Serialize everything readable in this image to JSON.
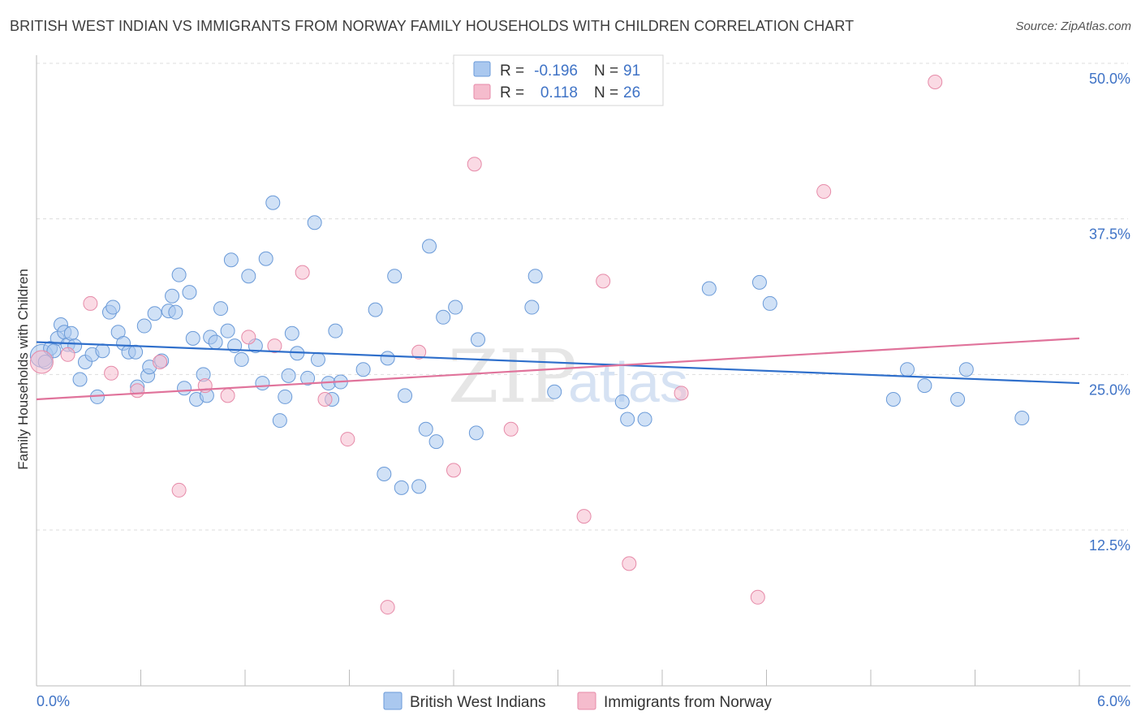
{
  "title": "BRITISH WEST INDIAN VS IMMIGRANTS FROM NORWAY FAMILY HOUSEHOLDS WITH CHILDREN CORRELATION CHART",
  "source": "Source: ZipAtlas.com",
  "watermark": {
    "zip": "ZIP",
    "atlas": "atlas"
  },
  "colors": {
    "blue_fill": "#aac8ef",
    "blue_stroke": "#6a9ad8",
    "blue_line": "#2f6fcb",
    "pink_fill": "#f5bccd",
    "pink_stroke": "#e68aa8",
    "pink_line": "#e0739b",
    "tick_label": "#3f73c6",
    "grid": "#dddddd"
  },
  "legend": {
    "rows": [
      {
        "r_label": "R =",
        "r_value": "-0.196",
        "n_label": "N =",
        "n_value": "91",
        "color": "#aac8ef"
      },
      {
        "r_label": "R =",
        "r_value": "0.118",
        "n_label": "N =",
        "n_value": "26",
        "color": "#f5bccd"
      }
    ]
  },
  "chart_data": {
    "type": "scatter",
    "title": "BRITISH WEST INDIAN VS IMMIGRANTS FROM NORWAY FAMILY HOUSEHOLDS WITH CHILDREN CORRELATION CHART",
    "xlabel": "",
    "ylabel": "Family Households with Children",
    "xlim": [
      0,
      6
    ],
    "ylim": [
      0,
      52
    ],
    "x_tick_labels": [
      {
        "value": 0,
        "label": "0.0%"
      },
      {
        "value": 6,
        "label": "6.0%"
      }
    ],
    "y_ticks": [
      {
        "value": 12.5,
        "label": "12.5%"
      },
      {
        "value": 25,
        "label": "25.0%"
      },
      {
        "value": 37.5,
        "label": "37.5%"
      },
      {
        "value": 50,
        "label": "50.0%"
      }
    ],
    "grid": true,
    "legend_position": "top-center",
    "series": [
      {
        "name": "British West Indians",
        "color": "#aac8ef",
        "trend": {
          "x": [
            0,
            6
          ],
          "y": [
            27.6,
            24.3
          ]
        },
        "points": [
          [
            0.03,
            26.5
          ],
          [
            0.05,
            26.0
          ],
          [
            0.08,
            27.1
          ],
          [
            0.12,
            27.9
          ],
          [
            0.14,
            29.0
          ],
          [
            0.16,
            28.4
          ],
          [
            0.18,
            27.4
          ],
          [
            0.2,
            28.3
          ],
          [
            0.22,
            27.3
          ],
          [
            0.25,
            24.6
          ],
          [
            0.28,
            26.0
          ],
          [
            0.32,
            26.6
          ],
          [
            0.35,
            23.2
          ],
          [
            0.38,
            26.9
          ],
          [
            0.42,
            30.0
          ],
          [
            0.44,
            30.4
          ],
          [
            0.47,
            28.4
          ],
          [
            0.5,
            27.5
          ],
          [
            0.53,
            26.8
          ],
          [
            0.57,
            26.8
          ],
          [
            0.58,
            24.0
          ],
          [
            0.62,
            28.9
          ],
          [
            0.64,
            24.9
          ],
          [
            0.65,
            25.6
          ],
          [
            0.68,
            29.9
          ],
          [
            0.72,
            26.1
          ],
          [
            0.76,
            30.1
          ],
          [
            0.78,
            31.3
          ],
          [
            0.8,
            30.0
          ],
          [
            0.82,
            33.0
          ],
          [
            0.85,
            23.9
          ],
          [
            0.88,
            31.6
          ],
          [
            0.9,
            27.9
          ],
          [
            0.92,
            23.0
          ],
          [
            0.96,
            25.0
          ],
          [
            0.98,
            23.3
          ],
          [
            1.0,
            28.0
          ],
          [
            1.03,
            27.6
          ],
          [
            1.06,
            30.3
          ],
          [
            1.1,
            28.5
          ],
          [
            1.12,
            34.2
          ],
          [
            1.14,
            27.3
          ],
          [
            1.18,
            26.2
          ],
          [
            1.22,
            32.9
          ],
          [
            1.26,
            27.3
          ],
          [
            1.3,
            24.3
          ],
          [
            1.32,
            34.3
          ],
          [
            1.36,
            38.8
          ],
          [
            1.4,
            21.3
          ],
          [
            1.43,
            23.2
          ],
          [
            1.45,
            24.9
          ],
          [
            1.47,
            28.3
          ],
          [
            1.5,
            26.7
          ],
          [
            1.56,
            24.7
          ],
          [
            1.6,
            37.2
          ],
          [
            1.62,
            26.2
          ],
          [
            1.68,
            24.3
          ],
          [
            1.7,
            23.0
          ],
          [
            1.72,
            28.5
          ],
          [
            1.75,
            24.4
          ],
          [
            1.88,
            25.4
          ],
          [
            1.95,
            30.2
          ],
          [
            2.0,
            17.0
          ],
          [
            2.02,
            26.3
          ],
          [
            2.06,
            32.9
          ],
          [
            2.1,
            15.9
          ],
          [
            2.12,
            23.3
          ],
          [
            2.2,
            16.0
          ],
          [
            2.24,
            20.6
          ],
          [
            2.26,
            35.3
          ],
          [
            2.3,
            19.6
          ],
          [
            2.34,
            29.6
          ],
          [
            2.41,
            30.4
          ],
          [
            2.53,
            20.3
          ],
          [
            2.54,
            27.8
          ],
          [
            2.85,
            30.4
          ],
          [
            2.87,
            32.9
          ],
          [
            2.98,
            23.6
          ],
          [
            3.37,
            22.8
          ],
          [
            3.4,
            21.4
          ],
          [
            3.5,
            21.4
          ],
          [
            3.87,
            31.9
          ],
          [
            4.16,
            32.4
          ],
          [
            4.22,
            30.7
          ],
          [
            4.93,
            23.0
          ],
          [
            5.01,
            25.4
          ],
          [
            5.11,
            24.1
          ],
          [
            5.3,
            23.0
          ],
          [
            5.35,
            25.4
          ],
          [
            5.67,
            21.5
          ],
          [
            0.1,
            26.9
          ]
        ]
      },
      {
        "name": "Immigrants from Norway",
        "color": "#f5bccd",
        "trend": {
          "x": [
            0,
            6
          ],
          "y": [
            23.0,
            27.9
          ]
        },
        "points": [
          [
            0.03,
            26.0
          ],
          [
            0.18,
            26.6
          ],
          [
            0.31,
            30.7
          ],
          [
            0.43,
            25.1
          ],
          [
            0.58,
            23.7
          ],
          [
            0.71,
            26.0
          ],
          [
            0.82,
            15.7
          ],
          [
            0.97,
            24.1
          ],
          [
            1.1,
            23.3
          ],
          [
            1.22,
            28.0
          ],
          [
            1.37,
            27.3
          ],
          [
            1.53,
            33.2
          ],
          [
            1.66,
            23.0
          ],
          [
            1.79,
            19.8
          ],
          [
            2.02,
            6.3
          ],
          [
            2.2,
            26.8
          ],
          [
            2.4,
            17.3
          ],
          [
            2.52,
            41.9
          ],
          [
            2.73,
            20.6
          ],
          [
            3.15,
            13.6
          ],
          [
            3.26,
            32.5
          ],
          [
            3.41,
            9.8
          ],
          [
            3.71,
            23.5
          ],
          [
            4.15,
            7.1
          ],
          [
            4.53,
            39.7
          ],
          [
            5.17,
            48.5
          ]
        ]
      }
    ]
  },
  "bottom_legend": [
    {
      "label": "British West Indians",
      "color": "#aac8ef"
    },
    {
      "label": "Immigrants from Norway",
      "color": "#f5bccd"
    }
  ]
}
